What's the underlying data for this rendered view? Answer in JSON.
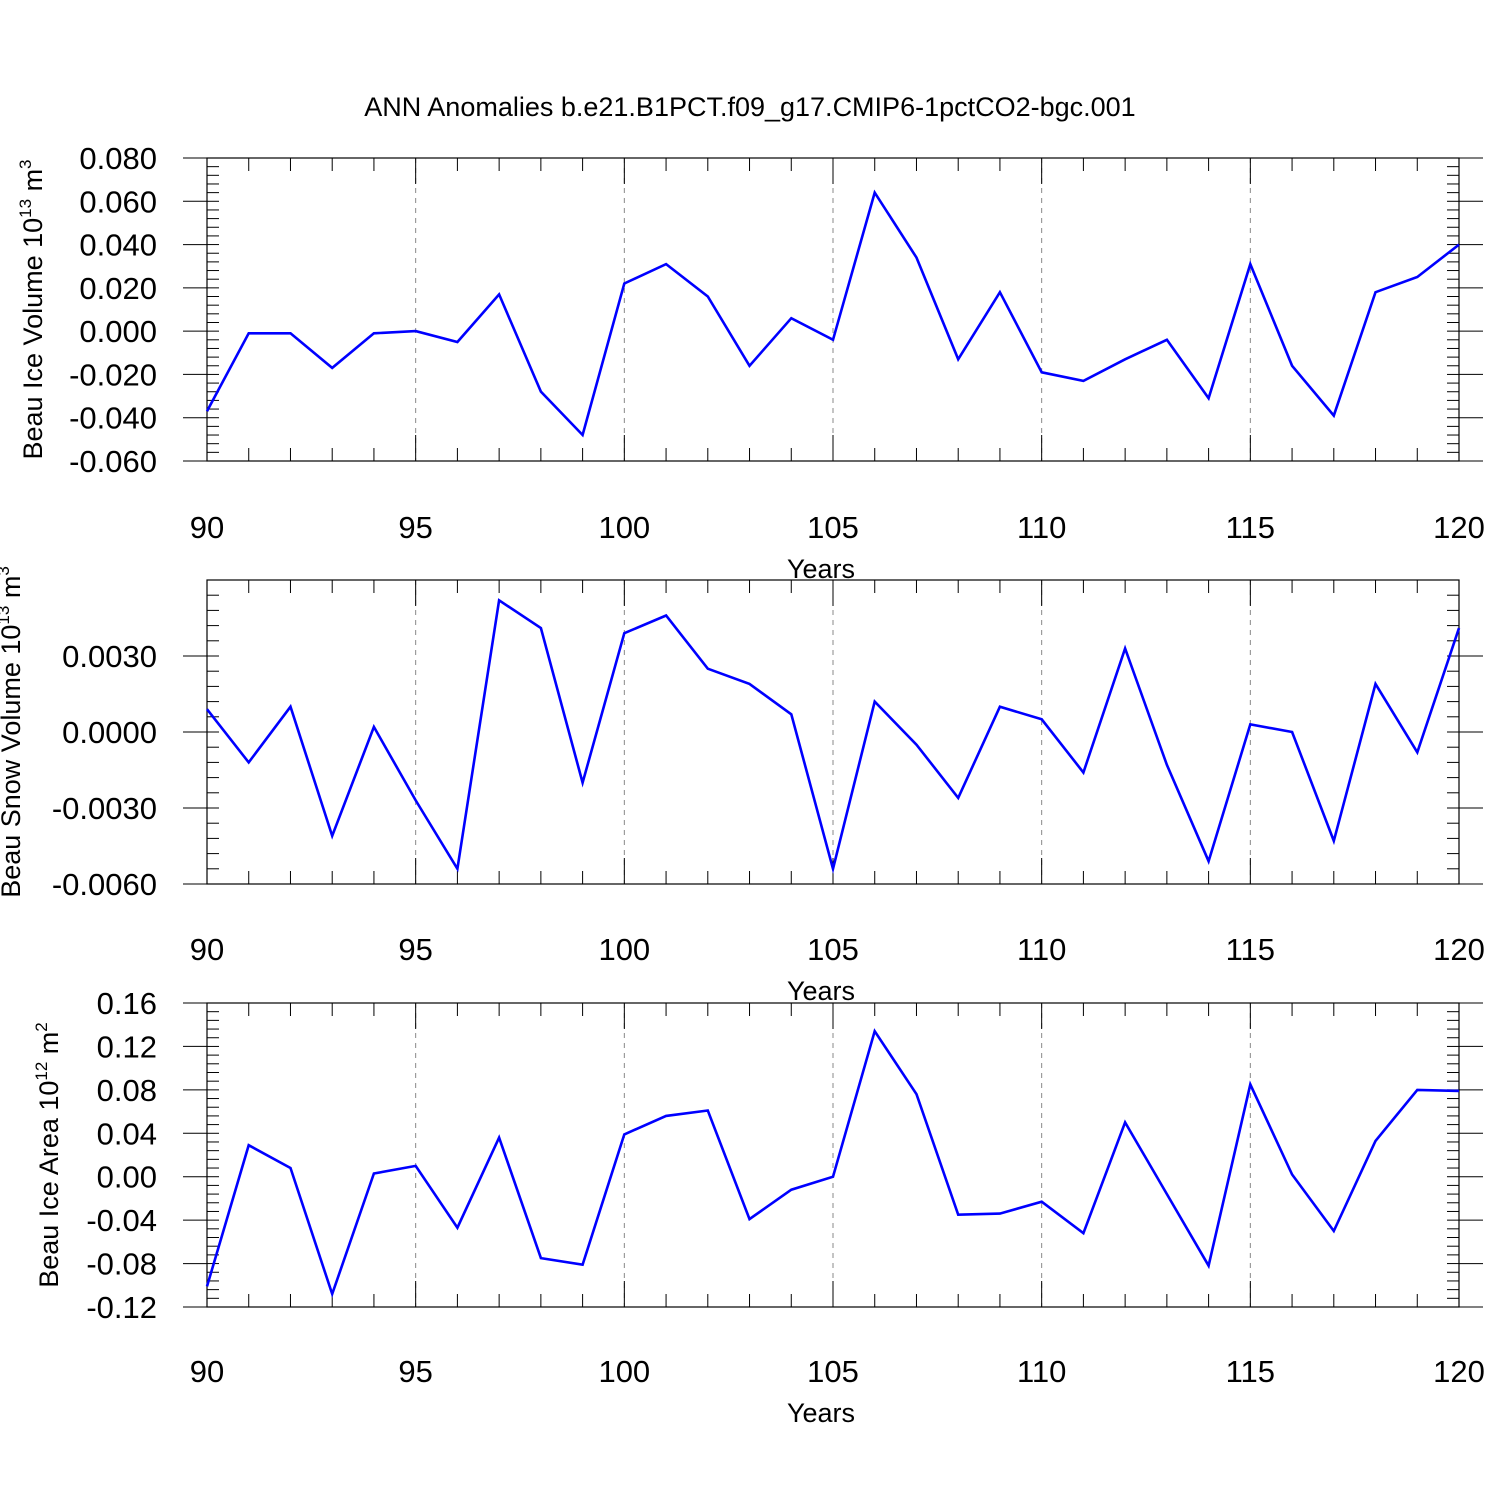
{
  "figure": {
    "title": "ANN Anomalies b.e21.B1PCT.f09_g17.CMIP6-1pctCO2-bgc.001",
    "line_color": "#0000ff"
  },
  "chart_data": [
    {
      "type": "line",
      "title": "ANN Anomalies b.e21.B1PCT.f09_g17.CMIP6-1pctCO2-bgc.001",
      "xlabel": "Years",
      "ylabel": "Beau Ice Volume 10",
      "ylabel_exp": "13",
      "ylabel_unit": "m",
      "ylabel_unit_exp": "3",
      "xlim": [
        90,
        120
      ],
      "ylim": [
        -0.06,
        0.08
      ],
      "xticks": [
        90,
        95,
        100,
        105,
        110,
        115,
        120
      ],
      "yticks": [
        "0.080",
        "0.060",
        "0.040",
        "0.020",
        "0.000",
        "-0.020",
        "-0.040",
        "-0.060"
      ],
      "ytick_values": [
        0.08,
        0.06,
        0.04,
        0.02,
        0.0,
        -0.02,
        -0.04,
        -0.06
      ],
      "x": [
        90,
        91,
        92,
        93,
        94,
        95,
        96,
        97,
        98,
        99,
        100,
        101,
        102,
        103,
        104,
        105,
        106,
        107,
        108,
        109,
        110,
        111,
        112,
        113,
        114,
        115,
        116,
        117,
        118,
        119,
        120
      ],
      "series": [
        {
          "color": "#0000ff",
          "values": [
            -0.037,
            -0.001,
            -0.001,
            -0.017,
            -0.001,
            0.0,
            -0.005,
            0.017,
            -0.028,
            -0.048,
            0.022,
            0.031,
            0.016,
            -0.016,
            0.006,
            -0.004,
            0.064,
            0.034,
            -0.013,
            0.018,
            -0.019,
            -0.023,
            -0.013,
            -0.004,
            -0.031,
            0.031,
            -0.016,
            -0.039,
            0.018,
            0.025,
            0.04
          ]
        }
      ],
      "grid": "dashed vertical lines at major x ticks"
    },
    {
      "type": "line",
      "xlabel": "Years",
      "ylabel": "Beau Snow Volume 10",
      "ylabel_exp": "13",
      "ylabel_unit": "m",
      "ylabel_unit_exp": "3",
      "xlim": [
        90,
        120
      ],
      "ylim": [
        -0.006,
        0.006
      ],
      "xticks": [
        90,
        95,
        100,
        105,
        110,
        115,
        120
      ],
      "yticks": [
        "0.0030",
        "0.0000",
        "-0.0030",
        "-0.0060"
      ],
      "ytick_values": [
        0.003,
        0.0,
        -0.003,
        -0.006
      ],
      "x": [
        90,
        91,
        92,
        93,
        94,
        95,
        96,
        97,
        98,
        99,
        100,
        101,
        102,
        103,
        104,
        105,
        106,
        107,
        108,
        109,
        110,
        111,
        112,
        113,
        114,
        115,
        116,
        117,
        118,
        119,
        120
      ],
      "series": [
        {
          "color": "#0000ff",
          "values": [
            0.0009,
            -0.0012,
            0.001,
            -0.0041,
            0.0002,
            -0.0027,
            -0.0054,
            0.0052,
            0.0041,
            -0.002,
            0.0039,
            0.0046,
            0.0025,
            0.0019,
            0.0007,
            -0.0054,
            0.0012,
            -0.0005,
            -0.0026,
            0.001,
            0.0005,
            -0.0016,
            0.0033,
            -0.0013,
            -0.0051,
            0.0003,
            0.0,
            -0.0043,
            0.0019,
            -0.0008,
            0.0041
          ]
        }
      ],
      "grid": "dashed vertical lines at major x ticks"
    },
    {
      "type": "line",
      "xlabel": "Years",
      "ylabel": "Beau Ice Area 10",
      "ylabel_exp": "12",
      "ylabel_unit": "m",
      "ylabel_unit_exp": "2",
      "xlim": [
        90,
        120
      ],
      "ylim": [
        -0.12,
        0.16
      ],
      "xticks": [
        90,
        95,
        100,
        105,
        110,
        115,
        120
      ],
      "yticks": [
        "0.16",
        "0.12",
        "0.08",
        "0.04",
        "0.00",
        "-0.04",
        "-0.08",
        "-0.12"
      ],
      "ytick_values": [
        0.16,
        0.12,
        0.08,
        0.04,
        0.0,
        -0.04,
        -0.08,
        -0.12
      ],
      "x": [
        90,
        91,
        92,
        93,
        94,
        95,
        96,
        97,
        98,
        99,
        100,
        101,
        102,
        103,
        104,
        105,
        106,
        107,
        108,
        109,
        110,
        111,
        112,
        113,
        114,
        115,
        116,
        117,
        118,
        119,
        120
      ],
      "series": [
        {
          "color": "#0000ff",
          "values": [
            -0.101,
            0.029,
            0.008,
            -0.108,
            0.003,
            0.01,
            -0.047,
            0.036,
            -0.075,
            -0.081,
            0.039,
            0.056,
            0.061,
            -0.039,
            -0.012,
            0.0,
            0.134,
            0.076,
            -0.035,
            -0.034,
            -0.023,
            -0.052,
            0.05,
            -0.016,
            -0.082,
            0.085,
            0.002,
            -0.05,
            0.033,
            0.08,
            0.079
          ]
        }
      ],
      "grid": "dashed vertical lines at major x ticks"
    }
  ]
}
